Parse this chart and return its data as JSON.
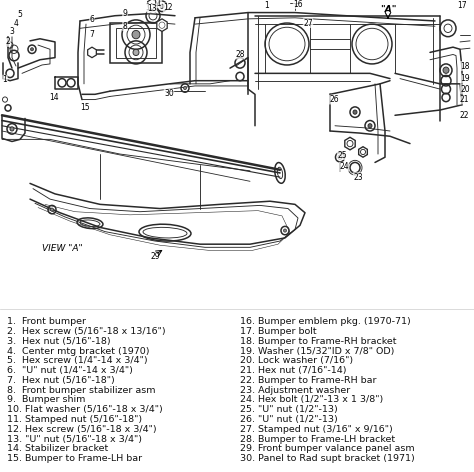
{
  "background_color": "#f5f5f0",
  "left_items": [
    "1.  Front bumper",
    "2.  Hex screw (5/16\"-18 x 13/16\")",
    "3.  Hex nut (5/16\"-18)",
    "4.  Center mtg bracket (1970)",
    "5.  Hex screw (1/4\"-14 x 3/4\")",
    "6.  \"U\" nut (1/4\"-14 x 3/4\")",
    "7.  Hex nut (5/16\"-18\")",
    "8.  Front bumper stabilizer asm",
    "9.  Bumper shim",
    "10. Flat washer (5/16\"-18 x 3/4\")",
    "11. Stamped nut (5/16\"-18\")",
    "12. Hex screw (5/16\"-18 x 3/4\")",
    "13. \"U\" nut (5/16\"-18 x 3/4\")",
    "14. Stabilizer bracket",
    "15. Bumper to Frame-LH bar"
  ],
  "right_items": [
    "16. Bumper emblem pkg. (1970-71)",
    "17. Bumper bolt",
    "18. Bumper to Frame-RH bracket",
    "19. Washer (15/32\"ID x 7/8\" OD)",
    "20. Lock washer (7/16\")",
    "21. Hex nut (7/16\"-14)",
    "22. Bumper to Frame-RH bar",
    "23. Adjustment washer",
    "24. Hex bolt (1/2\"-13 x 1 3/8\")",
    "25. \"U\" nut (1/2\"-13)",
    "26. \"U\" nut (1/2\"-13)",
    "27. Stamped nut (3/16\" x 9/16\")",
    "28. Bumper to Frame-LH bracket",
    "29. Front bumper valance panel asm",
    "30. Panel to Rad supt bracket (1971)"
  ],
  "font_size_legend": 6.8,
  "text_color": "#111111",
  "line_color": "#2a2a2a",
  "label_fontsize": 5.8
}
